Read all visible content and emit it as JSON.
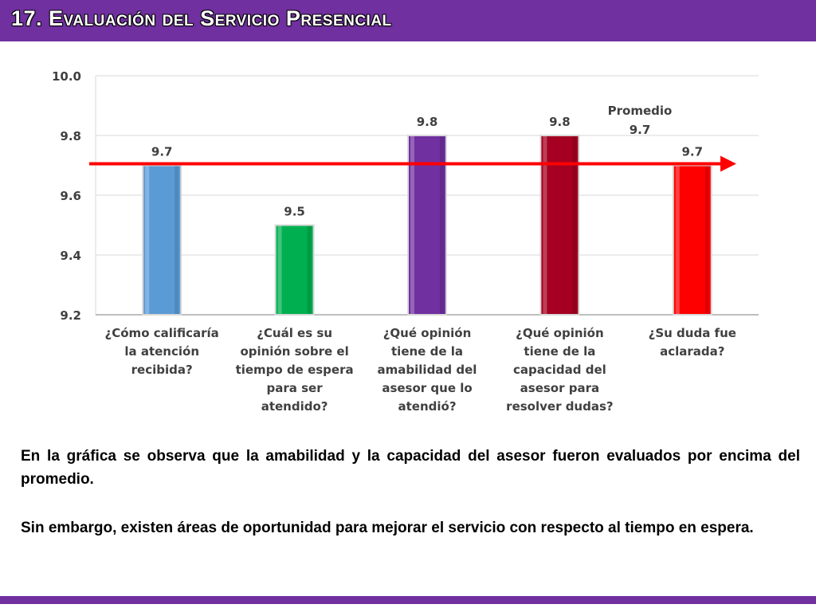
{
  "slide": {
    "title": "17. Evaluación del Servicio Presencial"
  },
  "chart_data": {
    "type": "bar",
    "categories": [
      "¿Cómo calificaría la atención recibida?",
      "¿Cuál es su opinión sobre el tiempo de espera para ser atendido?",
      "¿Qué opinión tiene de la amabilidad del asesor que lo atendió?",
      "¿Qué opinión tiene de la capacidad del asesor para resolver dudas?",
      "¿Su duda fue aclarada?"
    ],
    "category_lines": [
      [
        "¿Cómo calificaría",
        "la atención",
        "recibida?"
      ],
      [
        "¿Cuál es su",
        "opinión sobre el",
        "tiempo de espera",
        "para ser",
        "atendido?"
      ],
      [
        "¿Qué opinión",
        "tiene de la",
        "amabilidad del",
        "asesor que lo",
        "atendió?"
      ],
      [
        "¿Qué opinión",
        "tiene de la",
        "capacidad del",
        "asesor para",
        "resolver dudas?"
      ],
      [
        "¿Su duda fue",
        "aclarada?"
      ]
    ],
    "values": [
      9.7,
      9.5,
      9.8,
      9.8,
      9.7
    ],
    "data_labels": [
      "9.7",
      "9.5",
      "9.8",
      "9.8",
      "9.7"
    ],
    "bar_colors": [
      "#5b9bd5",
      "#00b050",
      "#7030a0",
      "#a50021",
      "#ff0000"
    ],
    "ylim": [
      9.2,
      10.0
    ],
    "yticks": [
      "9.2",
      "9.4",
      "9.6",
      "9.8",
      "10.0"
    ],
    "grid": "horizontal",
    "average": {
      "value": 9.7,
      "label": "Promedio",
      "value_label": "9.7",
      "color": "#ff0000"
    }
  },
  "text": {
    "paragraph1": "En la gráfica se observa que la amabilidad y la capacidad del asesor fueron evaluados por encima del promedio.",
    "paragraph2": "Sin embargo, existen áreas de oportunidad para mejorar el servicio con respecto al tiempo en espera."
  },
  "colors": {
    "header": "#7030a0",
    "footer": "#7030a0"
  }
}
